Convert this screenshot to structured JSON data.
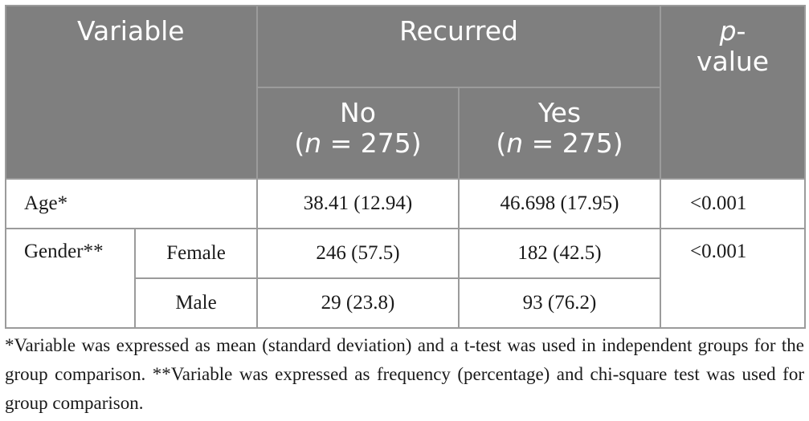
{
  "table": {
    "header": {
      "variable": "Variable",
      "recurred": "Recurred",
      "p_italic": "p",
      "p_dash": "-",
      "p_value": "value",
      "no_label": "No",
      "no_n_prefix": "(",
      "no_n_italic": "n",
      "no_n_suffix": " = 275)",
      "yes_label": "Yes",
      "yes_n_prefix": "(",
      "yes_n_italic": "n",
      "yes_n_suffix": " = 275)"
    },
    "rows": {
      "age": {
        "label": "Age*",
        "no": "38.41 (12.94)",
        "yes": "46.698 (17.95)",
        "p": "<0.001"
      },
      "gender": {
        "label": "Gender**",
        "p": "<0.001",
        "female": {
          "label": "Female",
          "no": "246 (57.5)",
          "yes": "182 (42.5)"
        },
        "male": {
          "label": "Male",
          "no": "29 (23.8)",
          "yes": "93 (76.2)"
        }
      }
    }
  },
  "footnote": "*Variable was expressed as mean (standard deviation) and a t-test was used in independent groups for the group comparison. **Variable was expressed as frequency (percentage) and chi-square test was used for group comparison."
}
